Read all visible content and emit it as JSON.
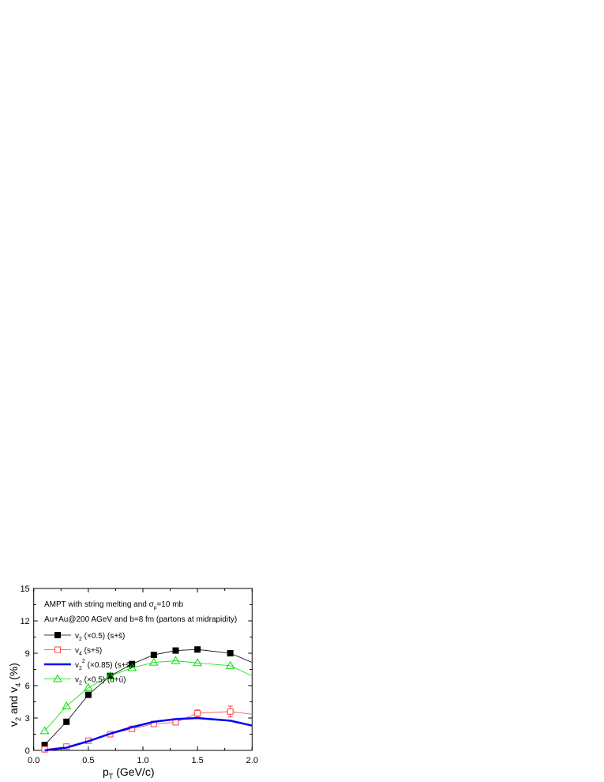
{
  "chart_data": {
    "type": "line",
    "xlabel": "p",
    "xlabel_sub": "T",
    "xlabel_rest": " (GeV/c)",
    "ylabel": [
      "v",
      "2",
      " and v",
      "4",
      " (%)"
    ],
    "xlim": [
      0,
      2.0
    ],
    "ylim": [
      0,
      15
    ],
    "xticks": [
      "0.0",
      "0.5",
      "1.0",
      "1.5",
      "2.0"
    ],
    "xtick_values": [
      0,
      0.5,
      1.0,
      1.5,
      2.0
    ],
    "yticks": [
      "0",
      "3",
      "6",
      "9",
      "12",
      "15"
    ],
    "ytick_values": [
      0,
      3,
      6,
      9,
      12,
      15
    ],
    "grid": false,
    "legend_placement": "top-left",
    "annotations": [
      {
        "parts": [
          "AMPT with string melting and ",
          "σ",
          "p",
          "=10 mb"
        ]
      },
      {
        "parts": [
          "Au+Au@200 AGeV and b=8 fm (partons at midrapidity)"
        ]
      }
    ],
    "series": [
      {
        "name": "v2 (×0.5) (s+s̄)",
        "legend": [
          "v",
          "2",
          "",
          " (×0.5) (s+s̄)"
        ],
        "color": "#000000",
        "marker": "filled-square",
        "x": [
          0.1,
          0.3,
          0.5,
          0.7,
          0.9,
          1.1,
          1.3,
          1.5,
          1.8,
          2.0
        ],
        "y": [
          0.5,
          2.65,
          5.15,
          6.9,
          8.0,
          8.85,
          9.25,
          9.35,
          9.0,
          8.15
        ],
        "markers_at": 9
      },
      {
        "name": "v4 (s+s̄)",
        "legend": [
          "v",
          "4",
          "",
          " (s+s̄)"
        ],
        "color": "#ff4040",
        "marker": "open-square",
        "x": [
          0.1,
          0.3,
          0.5,
          0.7,
          0.9,
          1.1,
          1.3,
          1.5,
          1.8,
          2.0
        ],
        "y": [
          0.1,
          0.35,
          0.9,
          1.5,
          2.0,
          2.45,
          2.6,
          3.45,
          3.6,
          3.35
        ],
        "err": [
          0,
          0,
          0.1,
          0.1,
          0.1,
          0.1,
          0.1,
          0.3,
          0.5,
          0
        ],
        "markers_at": 9
      },
      {
        "name": "v2^2 (×0.85) (s+s̄)",
        "legend": [
          "v",
          "2",
          "2",
          " (×0.85) (s+s̄)"
        ],
        "color": "#0000ff",
        "marker": "none",
        "x": [
          0.1,
          0.3,
          0.5,
          0.7,
          0.9,
          1.1,
          1.3,
          1.5,
          1.8,
          2.0
        ],
        "y": [
          0.0,
          0.25,
          0.85,
          1.55,
          2.15,
          2.65,
          2.9,
          3.0,
          2.75,
          2.3
        ]
      },
      {
        "name": "v2 (×0.5) (u+ū)",
        "legend": [
          "v",
          "2",
          "",
          " (×0.5) (u+ū)"
        ],
        "color": "#00e000",
        "marker": "open-triangle",
        "x": [
          0.1,
          0.3,
          0.5,
          0.7,
          0.9,
          1.1,
          1.3,
          1.5,
          1.8,
          2.0
        ],
        "y": [
          1.8,
          4.1,
          5.8,
          6.9,
          7.65,
          8.15,
          8.3,
          8.1,
          7.85,
          6.9
        ],
        "markers_at": 9
      }
    ]
  }
}
